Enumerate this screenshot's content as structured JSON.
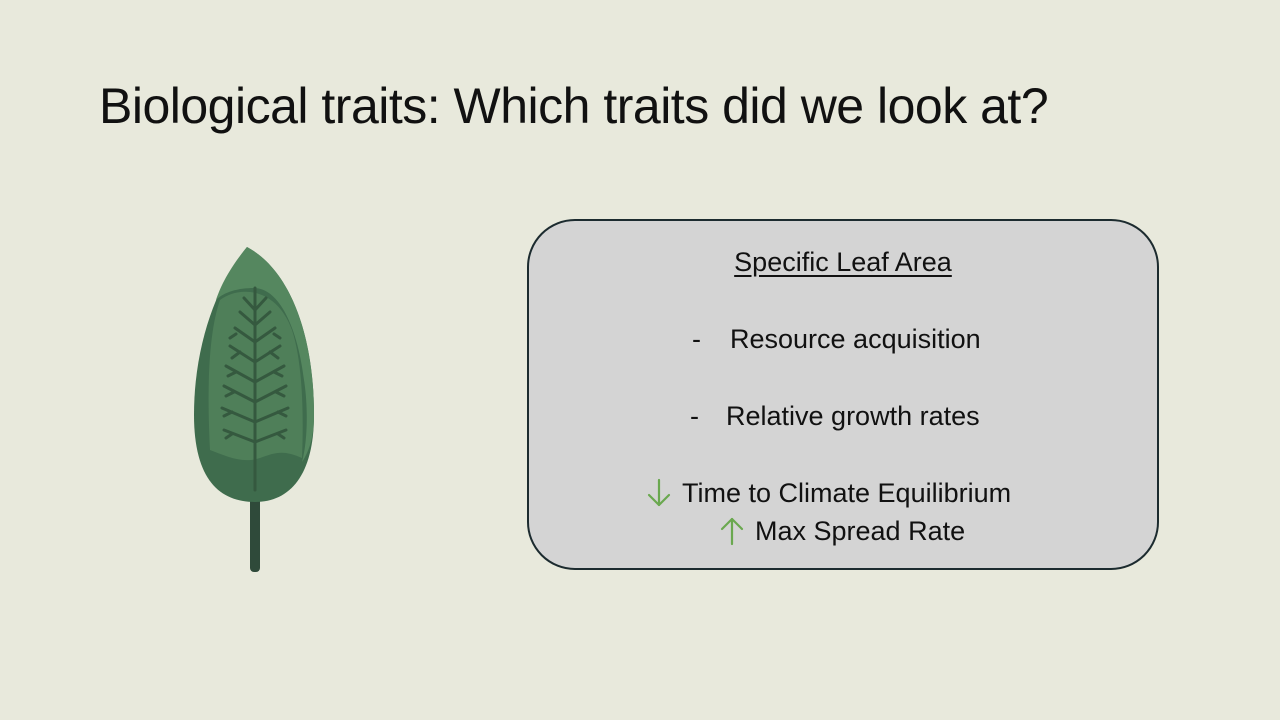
{
  "slide": {
    "title": "Biological traits: Which traits did we look at?"
  },
  "illustration": {
    "icon": "leaf-icon",
    "colors": {
      "leaf_dark": "#3f6c4d",
      "leaf_light": "#4f7f59",
      "veins": "#35593f",
      "stem": "#2f4a3a"
    }
  },
  "trait_box": {
    "heading": "Specific Leaf Area",
    "bullets": [
      {
        "marker": "-",
        "text": "Resource acquisition"
      },
      {
        "marker": "-",
        "text": "Relative growth rates"
      }
    ],
    "effects": [
      {
        "direction": "down",
        "icon": "arrow-down-icon",
        "text": "Time to Climate Equilibrium"
      },
      {
        "direction": "up",
        "icon": "arrow-up-icon",
        "text": "Max Spread Rate"
      }
    ],
    "colors": {
      "background": "#d4d4d4",
      "border": "#1c2b2f",
      "arrow": "#6aa84f"
    }
  }
}
